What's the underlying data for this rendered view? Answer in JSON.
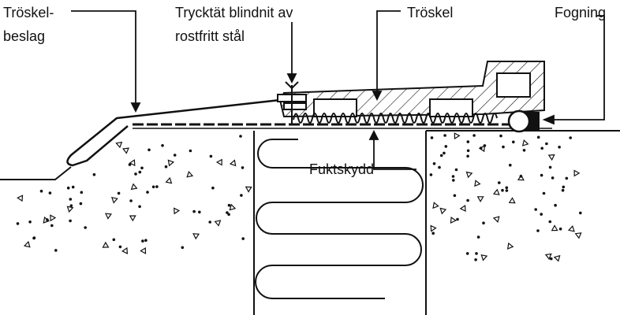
{
  "labels": {
    "troskel_beslag_line1": "Tröskel-",
    "troskel_beslag_line2": "beslag",
    "blindnit_line1": "Trycktät blindnit av",
    "blindnit_line2": "rostfritt stål",
    "troskel": "Tröskel",
    "fogning": "Fogning",
    "fuktskydd": "Fuktskydd"
  },
  "colors": {
    "ink": "#111111",
    "background": "#ffffff"
  }
}
